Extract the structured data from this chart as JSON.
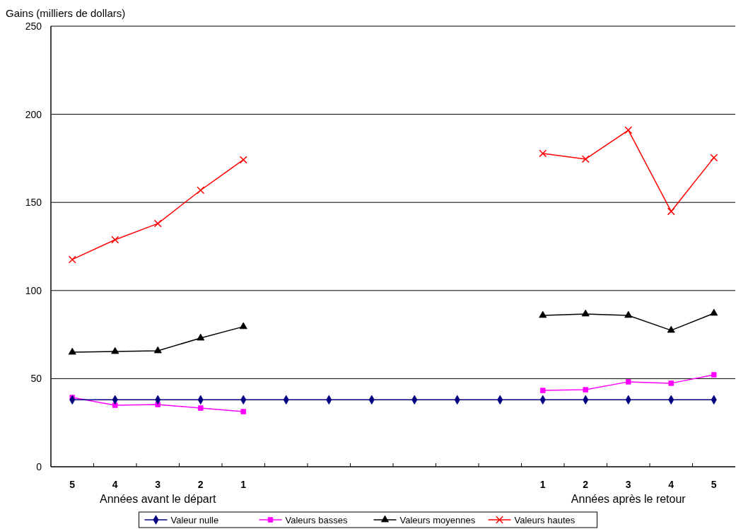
{
  "chart_data": {
    "type": "line",
    "ylabel": "Gains (milliers de dollars)",
    "categories": [
      "5",
      "4",
      "3",
      "2",
      "1",
      null,
      null,
      null,
      null,
      null,
      null,
      "1",
      "2",
      "3",
      "4",
      "5"
    ],
    "annotations": [
      "Années avant le départ",
      "Années après le retour"
    ],
    "series": [
      {
        "name": "Valeur nulle",
        "color": "#000080",
        "marker": "diamond",
        "values": [
          38,
          38,
          38,
          38,
          38,
          38,
          38,
          38,
          38,
          38,
          38,
          38,
          38,
          38,
          38,
          38
        ]
      },
      {
        "name": "Valeurs basses",
        "color": "#ff00ff",
        "marker": "square",
        "values": [
          39.3,
          34.9,
          35.3,
          33.3,
          31.3,
          null,
          null,
          null,
          null,
          null,
          null,
          43.3,
          43.7,
          48.2,
          47.4,
          52.2
        ]
      },
      {
        "name": "Valeurs moyennes",
        "color": "#000000",
        "marker": "triangle",
        "values": [
          65,
          65.4,
          65.8,
          73,
          79.5,
          null,
          null,
          null,
          null,
          null,
          null,
          85.9,
          86.7,
          85.9,
          77.4,
          87.1
        ]
      },
      {
        "name": "Valeurs hautes",
        "color": "#ff0000",
        "marker": "cross",
        "values": [
          117.6,
          128.8,
          138,
          156.9,
          174.2,
          null,
          null,
          null,
          null,
          null,
          null,
          177.8,
          174.6,
          191,
          144.9,
          175.4
        ]
      }
    ],
    "ylim": [
      0,
      250
    ],
    "yticks": [
      0,
      50,
      100,
      150,
      200,
      250
    ],
    "grid": "y",
    "legend": "bottom"
  }
}
